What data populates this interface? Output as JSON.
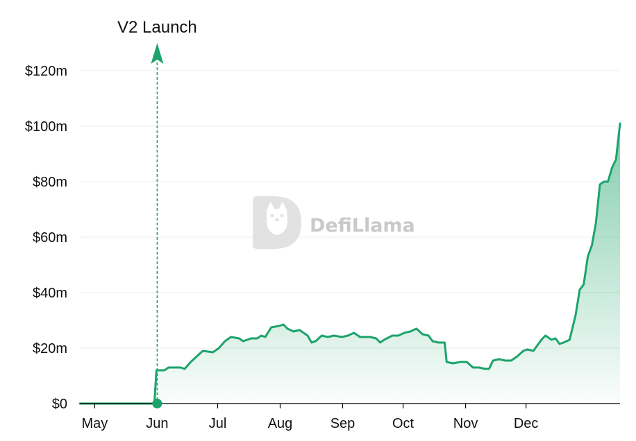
{
  "chart_data": {
    "type": "area",
    "title": "",
    "xlabel": "",
    "ylabel": "",
    "x_tick_labels": [
      "May",
      "Jun",
      "Jul",
      "Aug",
      "Sep",
      "Oct",
      "Nov",
      "Dec"
    ],
    "y_tick_labels": [
      "$0",
      "$20m",
      "$40m",
      "$60m",
      "$80m",
      "$100m",
      "$120m"
    ],
    "ylim": [
      0,
      130
    ],
    "y_unit": "$m",
    "grid": "horizontal",
    "legend": "none",
    "colors": {
      "line": "#1ca36b",
      "fill": "#1ca36b",
      "grid": "#ececec"
    },
    "annotation": {
      "label": "V2 Launch",
      "date": "2022-06-01"
    },
    "watermark": "DefiLlama",
    "series": [
      {
        "points": [
          [
            "2022-04-25",
            0
          ],
          [
            "2022-05-31",
            0
          ],
          [
            "2022-06-01",
            0.2
          ],
          [
            "2022-06-02",
            12
          ],
          [
            "2022-06-06",
            12
          ],
          [
            "2022-06-08",
            13
          ],
          [
            "2022-06-14",
            13
          ],
          [
            "2022-06-16",
            12.5
          ],
          [
            "2022-06-19",
            15
          ],
          [
            "2022-06-22",
            17
          ],
          [
            "2022-06-25",
            19
          ],
          [
            "2022-06-30",
            18.5
          ],
          [
            "2022-07-03",
            20
          ],
          [
            "2022-07-06",
            22.5
          ],
          [
            "2022-07-09",
            24
          ],
          [
            "2022-07-13",
            23.5
          ],
          [
            "2022-07-15",
            22.5
          ],
          [
            "2022-07-19",
            23.5
          ],
          [
            "2022-07-22",
            23.5
          ],
          [
            "2022-07-24",
            24.5
          ],
          [
            "2022-07-26",
            24
          ],
          [
            "2022-07-29",
            27.5
          ],
          [
            "2022-08-02",
            28
          ],
          [
            "2022-08-04",
            28.5
          ],
          [
            "2022-08-06",
            27
          ],
          [
            "2022-08-09",
            26
          ],
          [
            "2022-08-12",
            26.5
          ],
          [
            "2022-08-14",
            25.5
          ],
          [
            "2022-08-16",
            24.5
          ],
          [
            "2022-08-18",
            22
          ],
          [
            "2022-08-20",
            22.5
          ],
          [
            "2022-08-23",
            24.5
          ],
          [
            "2022-08-26",
            24
          ],
          [
            "2022-08-29",
            24.5
          ],
          [
            "2022-09-02",
            24
          ],
          [
            "2022-09-05",
            24.5
          ],
          [
            "2022-09-08",
            25.5
          ],
          [
            "2022-09-11",
            24
          ],
          [
            "2022-09-16",
            24
          ],
          [
            "2022-09-19",
            23.5
          ],
          [
            "2022-09-21",
            22
          ],
          [
            "2022-09-23",
            23
          ],
          [
            "2022-09-27",
            24.5
          ],
          [
            "2022-09-30",
            24.5
          ],
          [
            "2022-10-03",
            25.5
          ],
          [
            "2022-10-06",
            26
          ],
          [
            "2022-10-09",
            27
          ],
          [
            "2022-10-12",
            25
          ],
          [
            "2022-10-15",
            24.5
          ],
          [
            "2022-10-17",
            22.5
          ],
          [
            "2022-10-20",
            22
          ],
          [
            "2022-10-23",
            22
          ],
          [
            "2022-10-24",
            15
          ],
          [
            "2022-10-27",
            14.5
          ],
          [
            "2022-10-31",
            15
          ],
          [
            "2022-11-03",
            15
          ],
          [
            "2022-11-06",
            13
          ],
          [
            "2022-11-09",
            13
          ],
          [
            "2022-11-12",
            12.5
          ],
          [
            "2022-11-14",
            12.5
          ],
          [
            "2022-11-16",
            15.5
          ],
          [
            "2022-11-19",
            16
          ],
          [
            "2022-11-22",
            15.5
          ],
          [
            "2022-11-25",
            15.5
          ],
          [
            "2022-11-28",
            17
          ],
          [
            "2022-12-01",
            19
          ],
          [
            "2022-12-03",
            19.5
          ],
          [
            "2022-12-06",
            19
          ],
          [
            "2022-12-08",
            21
          ],
          [
            "2022-12-10",
            23
          ],
          [
            "2022-12-12",
            24.5
          ],
          [
            "2022-12-15",
            23
          ],
          [
            "2022-12-17",
            23.5
          ],
          [
            "2022-12-19",
            21.5
          ],
          [
            "2022-12-21",
            22
          ],
          [
            "2022-12-24",
            23
          ],
          [
            "2022-12-27",
            32
          ],
          [
            "2022-12-29",
            41
          ],
          [
            "2022-12-31",
            43
          ],
          [
            "2023-01-02",
            53
          ],
          [
            "2023-01-04",
            57
          ],
          [
            "2023-01-06",
            65
          ],
          [
            "2023-01-08",
            79
          ],
          [
            "2023-01-10",
            80
          ],
          [
            "2023-01-12",
            80
          ],
          [
            "2023-01-14",
            85
          ],
          [
            "2023-01-16",
            88
          ],
          [
            "2023-01-18",
            101
          ]
        ]
      }
    ]
  }
}
